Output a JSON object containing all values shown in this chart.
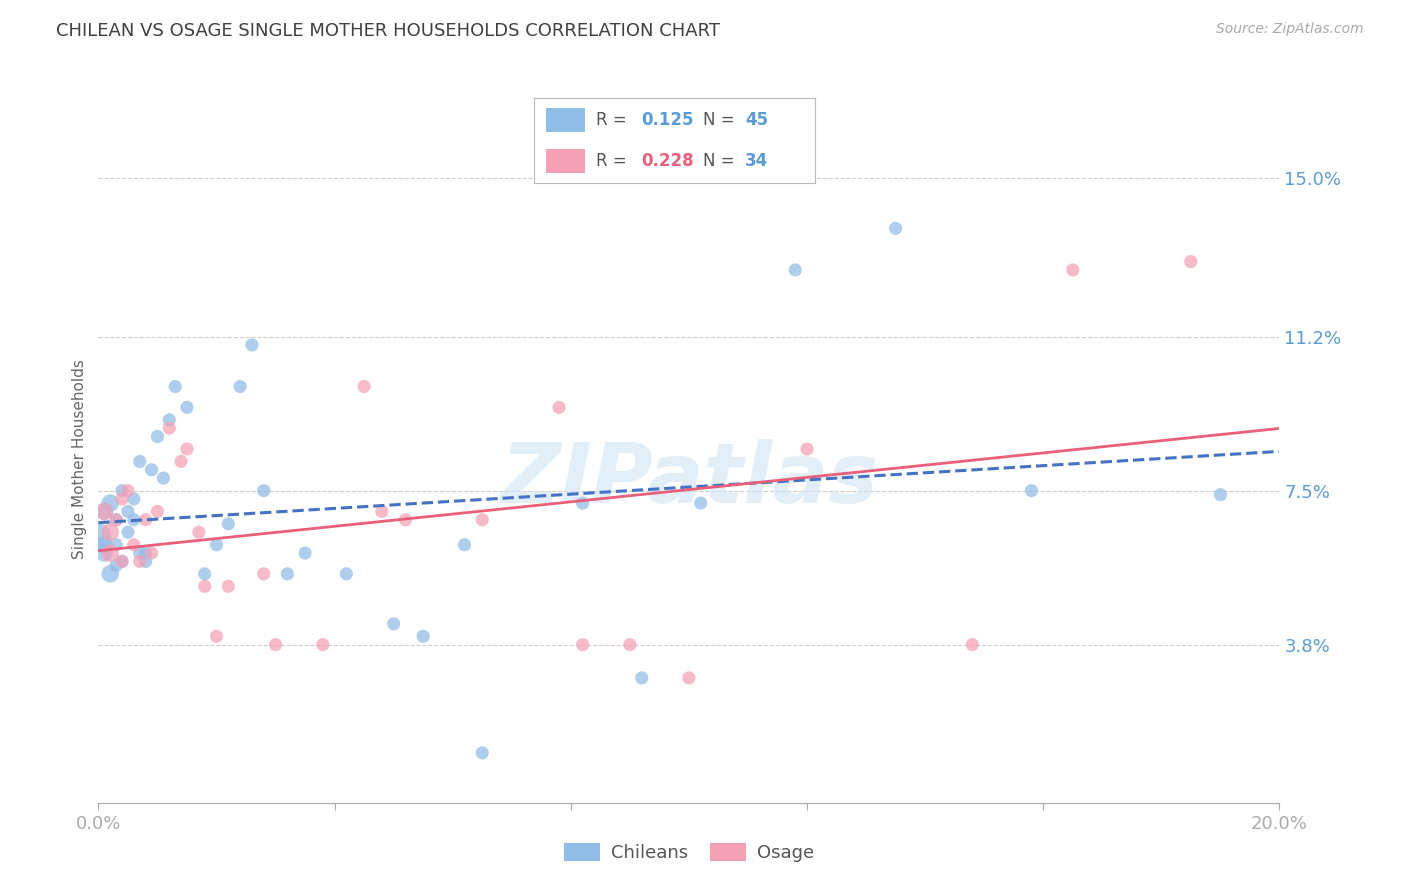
{
  "title": "CHILEAN VS OSAGE SINGLE MOTHER HOUSEHOLDS CORRELATION CHART",
  "source": "Source: ZipAtlas.com",
  "ylabel": "Single Mother Households",
  "watermark": "ZIPatlas",
  "legend_chilean_r": "0.125",
  "legend_chilean_n": "45",
  "legend_osage_r": "0.228",
  "legend_osage_n": "34",
  "chilean_color": "#90bce8",
  "osage_color": "#f4a0b5",
  "chilean_line_color": "#4472c4",
  "osage_line_color": "#e8607a",
  "axis_label_color": "#5b9bd5",
  "title_color": "#404040",
  "grid_color": "#c8c8c8",
  "background_color": "#ffffff",
  "xlim": [
    0.0,
    0.2
  ],
  "ylim": [
    0.0,
    0.165
  ],
  "xticks": [
    0.0,
    0.04,
    0.08,
    0.12,
    0.16,
    0.2
  ],
  "xticklabels": [
    "0.0%",
    "",
    "",
    "",
    "",
    "20.0%"
  ],
  "ytick_positions": [
    0.038,
    0.075,
    0.112,
    0.15
  ],
  "ytick_labels": [
    "3.8%",
    "7.5%",
    "11.2%",
    "15.0%"
  ],
  "chilean_x": [
    0.0,
    0.001,
    0.001,
    0.001,
    0.002,
    0.002,
    0.003,
    0.003,
    0.003,
    0.004,
    0.004,
    0.005,
    0.005,
    0.006,
    0.006,
    0.007,
    0.007,
    0.008,
    0.008,
    0.009,
    0.01,
    0.011,
    0.012,
    0.013,
    0.015,
    0.018,
    0.02,
    0.022,
    0.024,
    0.026,
    0.028,
    0.032,
    0.035,
    0.042,
    0.05,
    0.055,
    0.062,
    0.065,
    0.082,
    0.092,
    0.102,
    0.118,
    0.135,
    0.158,
    0.19
  ],
  "chilean_y": [
    0.064,
    0.062,
    0.06,
    0.07,
    0.055,
    0.072,
    0.068,
    0.062,
    0.057,
    0.075,
    0.058,
    0.07,
    0.065,
    0.073,
    0.068,
    0.082,
    0.06,
    0.06,
    0.058,
    0.08,
    0.088,
    0.078,
    0.092,
    0.1,
    0.095,
    0.055,
    0.062,
    0.067,
    0.1,
    0.11,
    0.075,
    0.055,
    0.06,
    0.055,
    0.043,
    0.04,
    0.062,
    0.012,
    0.072,
    0.03,
    0.072,
    0.128,
    0.138,
    0.075,
    0.074
  ],
  "osage_x": [
    0.001,
    0.002,
    0.002,
    0.003,
    0.004,
    0.004,
    0.005,
    0.006,
    0.007,
    0.008,
    0.009,
    0.01,
    0.012,
    0.014,
    0.015,
    0.017,
    0.018,
    0.02,
    0.022,
    0.028,
    0.03,
    0.038,
    0.045,
    0.048,
    0.052,
    0.065,
    0.078,
    0.082,
    0.09,
    0.1,
    0.12,
    0.148,
    0.165,
    0.185
  ],
  "osage_y": [
    0.07,
    0.065,
    0.06,
    0.068,
    0.058,
    0.073,
    0.075,
    0.062,
    0.058,
    0.068,
    0.06,
    0.07,
    0.09,
    0.082,
    0.085,
    0.065,
    0.052,
    0.04,
    0.052,
    0.055,
    0.038,
    0.038,
    0.1,
    0.07,
    0.068,
    0.068,
    0.095,
    0.038,
    0.038,
    0.03,
    0.085,
    0.038,
    0.128,
    0.13
  ],
  "chilean_r": 0.125,
  "osage_r": 0.228
}
